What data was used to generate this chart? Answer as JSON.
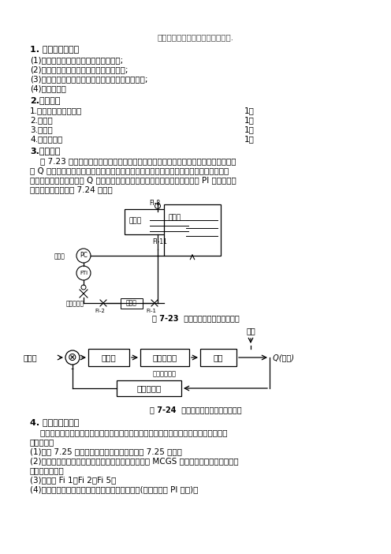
{
  "title": "电动阀支路流量定值控制系统调试.",
  "section1_title": "1. 实践操作的要求",
  "section1_items": [
    "(1)了解单闭环流量定值控制系统的组成;",
    "(2)应用阶跃响应曲线法整定调节器的参数;",
    "(3)研究调节器中相关参数的变化对系统性能的影响;",
    "(4)撰写报告。"
  ],
  "section2_title": "2.设备器材",
  "section2_items": [
    [
      "1.仪表自动化实验装置",
      "1套"
    ],
    [
      "2.万用表",
      "1台"
    ],
    [
      "3.上位机",
      "1台"
    ],
    [
      "4.无纸记录仪",
      "1台"
    ]
  ],
  "section3_title": "3.实践原理",
  "fig723_caption": "图 7-23  单闭环流量控制系统的结构",
  "fig724_caption": "图 7-24  单闭环流量控制系统的方框图",
  "section3_lines": [
    "    图 7.23 为单闭环流量控制系统的结构。系统的被控对象为管道，流经管道中的液体流",
    "量 Q 作为被控变量。基于系统的控制任务是维持被控变量恒定不变，即在稳态时，它总等",
    "于设定值。因此需把流量 Q 经检测变送后的信号作为系统的反馈量，并采用 PI 调节器。系",
    "统的控制方框图如图 7.24 所示。"
  ],
  "section4_title": "4. 实践操作的步骤",
  "section4_para_lines": [
    "    基于被控对象是一个时间常数较小的惯性环节，故本系统调节器的参数宜用阶跃响应曲",
    "线法确定。"
  ],
  "section4_items": [
    "(1)按图 7.25 的要求，完成系统的接线，如图 7.25 所示。",
    "(2)接通总电源和相关仪表的电源，打开计算机，运行 MCGS 组态软件，为记录过渡过程",
    "曲线做好准备。",
    "(3)打开阀 Fi 1、Fi 2、Fi 5。",
    "(4)根据经验法，预先设置好调节器预整定参数值(本系统采用 PI 调节)。"
  ],
  "bg_color": "#ffffff"
}
